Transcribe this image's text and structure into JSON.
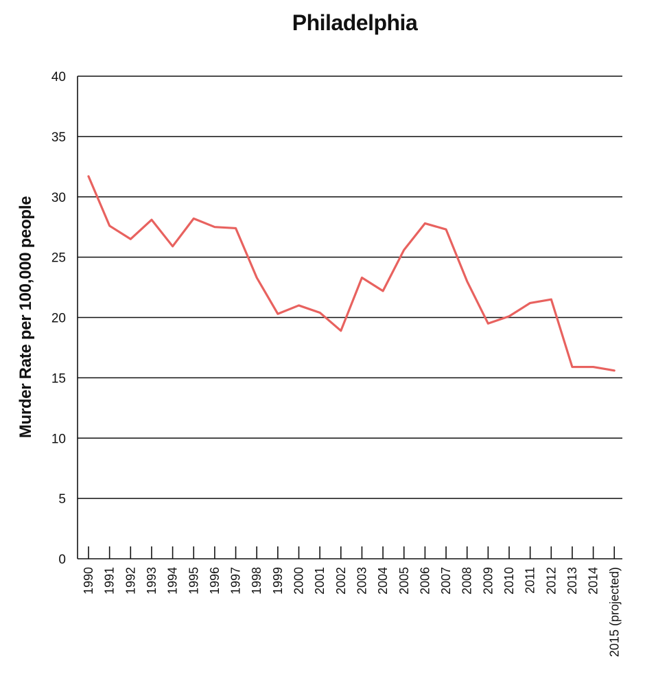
{
  "chart_data": {
    "type": "line",
    "title": "Philadelphia",
    "xlabel": "",
    "ylabel": "Murder Rate per 100,000 people",
    "ylim": [
      0,
      40
    ],
    "yticks": [
      0,
      5,
      10,
      15,
      20,
      25,
      30,
      35,
      40
    ],
    "grid": true,
    "categories": [
      "1990",
      "1991",
      "1992",
      "1993",
      "1994",
      "1995",
      "1996",
      "1997",
      "1998",
      "1999",
      "2000",
      "2001",
      "2002",
      "2003",
      "2004",
      "2005",
      "2006",
      "2007",
      "2008",
      "2009",
      "2010",
      "2011",
      "2012",
      "2013",
      "2014",
      "2015 (projected)"
    ],
    "series": [
      {
        "color": "#e8625f",
        "values": [
          31.7,
          27.6,
          26.5,
          28.1,
          25.9,
          28.2,
          27.5,
          27.4,
          23.3,
          20.3,
          21.0,
          20.4,
          18.9,
          23.3,
          22.2,
          25.6,
          27.8,
          27.3,
          23.0,
          19.5,
          20.1,
          21.2,
          21.5,
          15.9,
          15.9,
          15.6
        ]
      }
    ]
  },
  "colors": {
    "line": "#e8625f",
    "grid": "#111111",
    "axis": "#111111",
    "text": "#111111"
  }
}
